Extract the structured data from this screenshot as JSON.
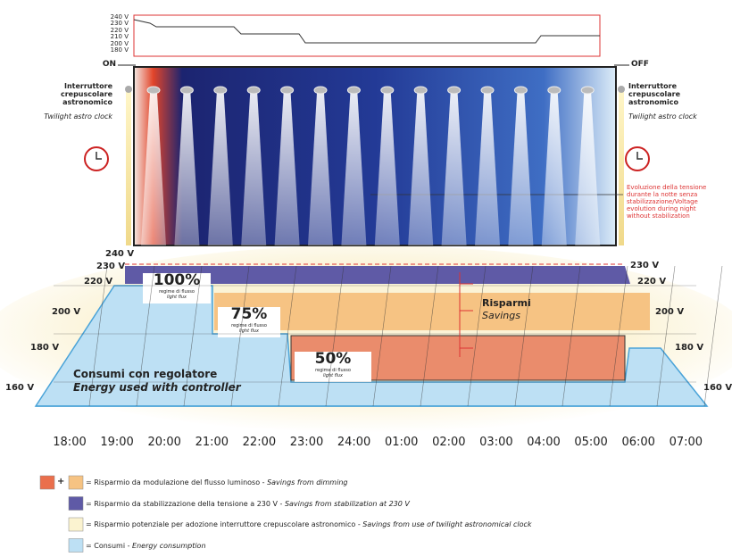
{
  "top_chart": {
    "voltage_labels": [
      "240 V",
      "230 V",
      "220 V",
      "210 V",
      "200 V",
      "180 V"
    ]
  },
  "left_switch": {
    "state": "ON",
    "title": "Interruttore crepuscolare astronomico",
    "subtitle": "Twilight astro clock"
  },
  "right_switch": {
    "state": "OFF",
    "title": "Interruttore crepuscolare astronomico",
    "subtitle": "Twilight astro clock"
  },
  "annotation": "Evoluzione della tensione durante la notte senza stabilizzazione/Voltage evolution during night without stabilization",
  "left_voltages": [
    "240 V",
    "230 V",
    "220 V",
    "200 V",
    "180 V",
    "160 V"
  ],
  "right_voltages": [
    "230 V",
    "220 V",
    "200 V",
    "180 V",
    "160 V"
  ],
  "flux_boxes": [
    {
      "percent": "100%",
      "label_it": "regime di flusso",
      "label_en": "light flux"
    },
    {
      "percent": "75%",
      "label_it": "regime di flusso",
      "label_en": "light flux"
    },
    {
      "percent": "50%",
      "label_it": "regime di flusso",
      "label_en": "light flux"
    }
  ],
  "savings": {
    "it": "Risparmi",
    "en": "Savings"
  },
  "consumption": {
    "it": "Consumi con regolatore",
    "en": "Energy used with controller"
  },
  "time_axis": [
    "18:00",
    "19:00",
    "20:00",
    "21:00",
    "22:00",
    "23:00",
    "24:00",
    "01:00",
    "02:00",
    "03:00",
    "04:00",
    "05:00",
    "06:00",
    "07:00"
  ],
  "legend": [
    {
      "plus": "+",
      "it": "= Risparmio da modulazione del flusso luminoso - ",
      "en": "Savings from dimming"
    },
    {
      "it": "= Risparmio da stabilizzazione della tensione a 230 V - ",
      "en": "Savings from stabilization at 230 V"
    },
    {
      "it": "= Risparmio potenziale per adozione interruttore crepuscolare astronomico - ",
      "en": "Savings from use of twilight astronomical clock"
    },
    {
      "it": "= Consumi - ",
      "en": "Energy consumption"
    }
  ]
}
